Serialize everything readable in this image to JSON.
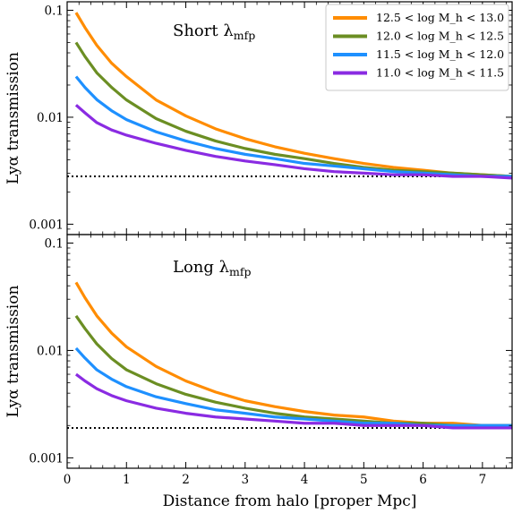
{
  "chart_data": [
    {
      "type": "line",
      "panel_label": "Short λ",
      "panel_label_sub": "mfp",
      "ylabel": "Lyα transmission",
      "xlabel": "",
      "yscale": "log",
      "xlim": [
        0,
        7.5
      ],
      "ylim": [
        0.0008,
        0.12
      ],
      "xticks": [
        0,
        1,
        2,
        3,
        4,
        5,
        6,
        7
      ],
      "yticks": [
        0.001,
        0.01,
        0.1
      ],
      "ytick_labels": [
        "0.001",
        "0.01",
        "0.1"
      ],
      "xtick_labels": [
        "",
        "",
        "",
        "",
        "",
        "",
        "",
        ""
      ],
      "reference_line": 0.0028,
      "legend_position": "top-right",
      "x": [
        0.15,
        0.3,
        0.5,
        0.75,
        1.0,
        1.5,
        2.0,
        2.5,
        3.0,
        3.5,
        4.0,
        4.5,
        5.0,
        5.5,
        6.0,
        6.5,
        7.0,
        7.5
      ],
      "series": [
        {
          "name": "12.5 < log M_h < 13.0",
          "color": "#ff8c00",
          "values": [
            0.095,
            0.069,
            0.047,
            0.032,
            0.024,
            0.0145,
            0.0103,
            0.0078,
            0.0063,
            0.0053,
            0.0046,
            0.0041,
            0.0037,
            0.0034,
            0.0032,
            0.003,
            0.0029,
            0.0028
          ]
        },
        {
          "name": "12.0 < log M_h < 12.5",
          "color": "#6b8e23",
          "values": [
            0.05,
            0.037,
            0.026,
            0.019,
            0.0145,
            0.0097,
            0.0074,
            0.006,
            0.0051,
            0.0045,
            0.0041,
            0.0037,
            0.0034,
            0.0032,
            0.0031,
            0.003,
            0.0029,
            0.0028
          ]
        },
        {
          "name": "11.5 < log M_h < 12.0",
          "color": "#1e90ff",
          "values": [
            0.024,
            0.019,
            0.0146,
            0.0115,
            0.0095,
            0.0073,
            0.006,
            0.0051,
            0.0045,
            0.0041,
            0.0037,
            0.0035,
            0.0033,
            0.0031,
            0.003,
            0.0029,
            0.0028,
            0.0028
          ]
        },
        {
          "name": "11.0 < log M_h < 11.5",
          "color": "#8a2be2",
          "values": [
            0.013,
            0.011,
            0.0089,
            0.0076,
            0.0068,
            0.0057,
            0.0049,
            0.0043,
            0.0039,
            0.0036,
            0.0033,
            0.0031,
            0.003,
            0.0029,
            0.0029,
            0.0028,
            0.0028,
            0.0027
          ]
        }
      ]
    },
    {
      "type": "line",
      "panel_label": "Long λ",
      "panel_label_sub": "mfp",
      "ylabel": "Lyα transmission",
      "xlabel": "Distance from halo [proper Mpc]",
      "yscale": "log",
      "xlim": [
        0,
        7.5
      ],
      "ylim": [
        0.0008,
        0.12
      ],
      "xticks": [
        0,
        1,
        2,
        3,
        4,
        5,
        6,
        7
      ],
      "xtick_labels": [
        "0",
        "1",
        "2",
        "3",
        "4",
        "5",
        "6",
        "7"
      ],
      "yticks": [
        0.001,
        0.01,
        0.1
      ],
      "ytick_labels": [
        "0.001",
        "0.01",
        "0.1"
      ],
      "reference_line": 0.0019,
      "x": [
        0.15,
        0.3,
        0.5,
        0.75,
        1.0,
        1.5,
        2.0,
        2.5,
        3.0,
        3.5,
        4.0,
        4.5,
        5.0,
        5.5,
        6.0,
        6.5,
        7.0,
        7.5
      ],
      "series": [
        {
          "name": "12.5 < log M_h < 13.0",
          "color": "#ff8c00",
          "values": [
            0.043,
            0.031,
            0.021,
            0.0145,
            0.0108,
            0.0071,
            0.0052,
            0.0041,
            0.0034,
            0.003,
            0.0027,
            0.0025,
            0.0024,
            0.0022,
            0.0021,
            0.0021,
            0.002,
            0.002
          ]
        },
        {
          "name": "12.0 < log M_h < 12.5",
          "color": "#6b8e23",
          "values": [
            0.021,
            0.016,
            0.0115,
            0.0084,
            0.0066,
            0.0049,
            0.0039,
            0.0033,
            0.0029,
            0.0026,
            0.0024,
            0.0023,
            0.0022,
            0.0021,
            0.0021,
            0.002,
            0.002,
            0.002
          ]
        },
        {
          "name": "11.5 < log M_h < 12.0",
          "color": "#1e90ff",
          "values": [
            0.0105,
            0.0085,
            0.0066,
            0.0054,
            0.0046,
            0.0037,
            0.0032,
            0.0028,
            0.0026,
            0.0024,
            0.0023,
            0.0022,
            0.0021,
            0.0021,
            0.002,
            0.002,
            0.002,
            0.002
          ]
        },
        {
          "name": "11.0 < log M_h < 11.5",
          "color": "#8a2be2",
          "values": [
            0.006,
            0.0052,
            0.0044,
            0.0038,
            0.0034,
            0.0029,
            0.0026,
            0.0024,
            0.0023,
            0.0022,
            0.0021,
            0.0021,
            0.002,
            0.002,
            0.002,
            0.0019,
            0.0019,
            0.0019
          ]
        }
      ]
    }
  ]
}
